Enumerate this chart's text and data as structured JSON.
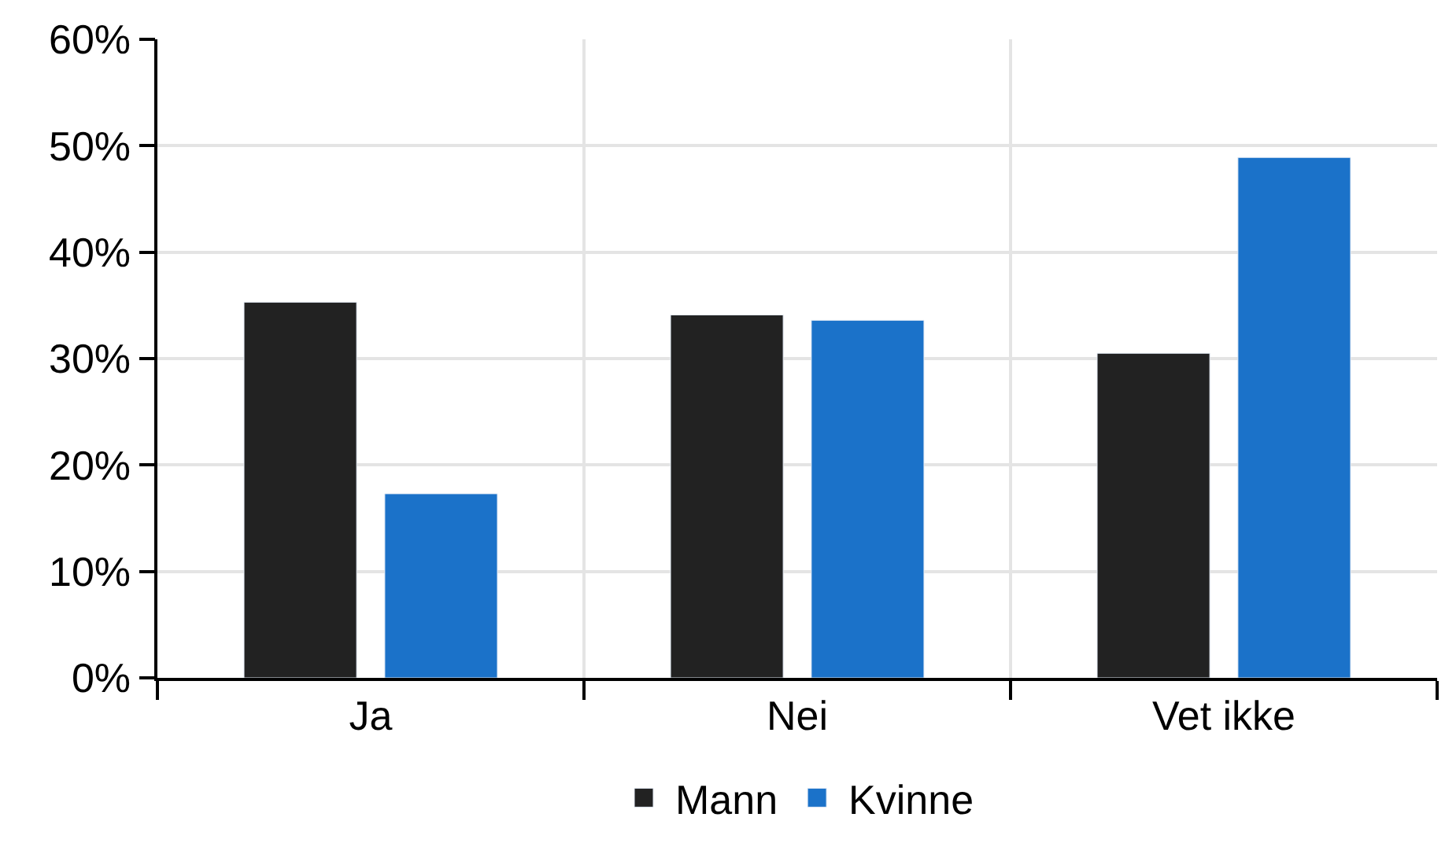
{
  "chart_data": {
    "type": "bar",
    "categories": [
      "Ja",
      "Nei",
      "Vet ikke"
    ],
    "series": [
      {
        "name": "Mann",
        "color": "#222222",
        "values": [
          35.3,
          34.1,
          30.5
        ]
      },
      {
        "name": "Kvinne",
        "color": "#1b72c9",
        "values": [
          17.3,
          33.6,
          48.9
        ]
      }
    ],
    "ylim": [
      0,
      60
    ],
    "yticks": [
      {
        "value": 0,
        "label": "0%"
      },
      {
        "value": 10,
        "label": "10%"
      },
      {
        "value": 20,
        "label": "20%"
      },
      {
        "value": 30,
        "label": "30%"
      },
      {
        "value": 40,
        "label": "40%"
      },
      {
        "value": 50,
        "label": "50%"
      },
      {
        "value": 60,
        "label": "60%"
      }
    ],
    "grid": true,
    "legend": "bottom"
  }
}
